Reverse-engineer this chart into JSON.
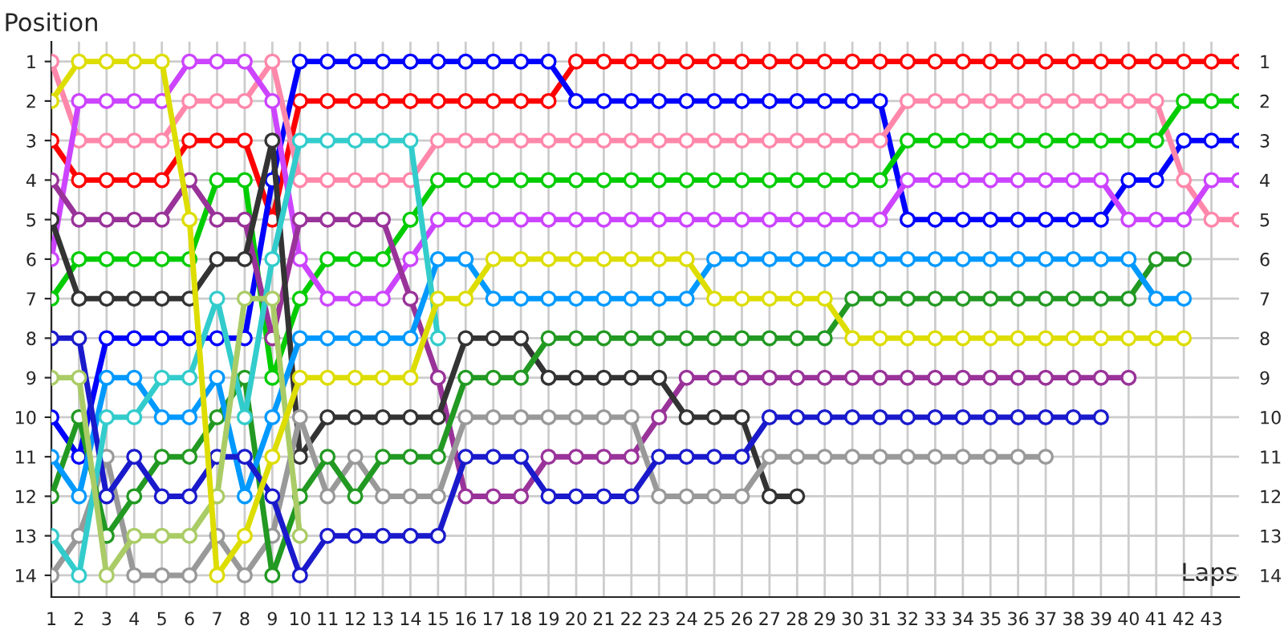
{
  "chart_data": {
    "type": "line",
    "xlabel": "Laps",
    "ylabel": "Position",
    "x": [
      1,
      2,
      3,
      4,
      5,
      6,
      7,
      8,
      9,
      10,
      11,
      12,
      13,
      14,
      15,
      16,
      17,
      18,
      19,
      20,
      21,
      22,
      23,
      24,
      25,
      26,
      27,
      28,
      29,
      30,
      31,
      32,
      33,
      34,
      35,
      36,
      37,
      38,
      39,
      40,
      41,
      42,
      43,
      44
    ],
    "xlim": [
      1,
      44
    ],
    "xticks": [
      1,
      2,
      3,
      4,
      5,
      6,
      7,
      8,
      9,
      10,
      11,
      12,
      13,
      14,
      15,
      16,
      17,
      18,
      19,
      20,
      21,
      22,
      23,
      24,
      25,
      26,
      27,
      28,
      29,
      30,
      31,
      32,
      33,
      34,
      35,
      36,
      37,
      38,
      39,
      40,
      41,
      42,
      43
    ],
    "ylim": [
      14.55,
      0.5
    ],
    "yticks": [
      1,
      2,
      3,
      4,
      5,
      6,
      7,
      8,
      9,
      10,
      11,
      12,
      13,
      14
    ],
    "y2lim": [
      14.55,
      0.5
    ],
    "y2ticks": [
      1,
      2,
      3,
      4,
      5,
      6,
      7,
      8,
      9,
      10,
      11,
      12,
      13,
      14
    ],
    "grid": true,
    "marker": "circle",
    "line_style": "solid",
    "series": [
      {
        "color": "#ff0000",
        "values": [
          3,
          4,
          4,
          4,
          4,
          3,
          3,
          3,
          5,
          2,
          2,
          2,
          2,
          2,
          2,
          2,
          2,
          2,
          2,
          1,
          1,
          1,
          1,
          1,
          1,
          1,
          1,
          1,
          1,
          1,
          1,
          1,
          1,
          1,
          1,
          1,
          1,
          1,
          1,
          1,
          1,
          1,
          1,
          1
        ]
      },
      {
        "color": "#0000ff",
        "values": [
          10,
          11,
          8,
          8,
          8,
          8,
          8,
          8,
          4,
          1,
          1,
          1,
          1,
          1,
          1,
          1,
          1,
          1,
          1,
          2,
          2,
          2,
          2,
          2,
          2,
          2,
          2,
          2,
          2,
          2,
          2,
          5,
          5,
          5,
          5,
          5,
          5,
          5,
          5,
          4,
          4,
          3,
          3,
          3
        ]
      },
      {
        "color": "#ff88aa",
        "values": [
          1,
          3,
          3,
          3,
          3,
          2,
          2,
          2,
          1,
          4,
          4,
          4,
          4,
          4,
          3,
          3,
          3,
          3,
          3,
          3,
          3,
          3,
          3,
          3,
          3,
          3,
          3,
          3,
          3,
          3,
          3,
          2,
          2,
          2,
          2,
          2,
          2,
          2,
          2,
          2,
          2,
          4,
          5,
          5
        ]
      },
      {
        "color": "#00cc00",
        "values": [
          7,
          6,
          6,
          6,
          6,
          6,
          4,
          4,
          9,
          7,
          6,
          6,
          6,
          5,
          4,
          4,
          4,
          4,
          4,
          4,
          4,
          4,
          4,
          4,
          4,
          4,
          4,
          4,
          4,
          4,
          4,
          3,
          3,
          3,
          3,
          3,
          3,
          3,
          3,
          3,
          3,
          2,
          2,
          2
        ]
      },
      {
        "color": "#cc44ff",
        "values": [
          6,
          2,
          2,
          2,
          2,
          1,
          1,
          1,
          2,
          6,
          7,
          7,
          7,
          6,
          5,
          5,
          5,
          5,
          5,
          5,
          5,
          5,
          5,
          5,
          5,
          5,
          5,
          5,
          5,
          5,
          5,
          4,
          4,
          4,
          4,
          4,
          4,
          4,
          4,
          5,
          5,
          5,
          4,
          4
        ]
      },
      {
        "color": "#993399",
        "values": [
          4,
          5,
          5,
          5,
          5,
          4,
          5,
          5,
          8,
          5,
          5,
          5,
          5,
          7,
          9,
          12,
          12,
          12,
          11,
          11,
          11,
          11,
          10,
          9,
          9,
          9,
          9,
          9,
          9,
          9,
          9,
          9,
          9,
          9,
          9,
          9,
          9,
          9,
          9,
          9,
          null,
          null,
          null,
          null
        ]
      },
      {
        "color": "#333333",
        "values": [
          5,
          7,
          7,
          7,
          7,
          7,
          6,
          6,
          3,
          11,
          10,
          10,
          10,
          10,
          10,
          8,
          8,
          8,
          9,
          9,
          9,
          9,
          9,
          10,
          10,
          10,
          12,
          12,
          null,
          null,
          null,
          null,
          null,
          null,
          null,
          null,
          null,
          null,
          null,
          null,
          null,
          null,
          null,
          null
        ]
      },
      {
        "color": "#999999",
        "values": [
          14,
          13,
          11,
          14,
          14,
          14,
          13,
          14,
          13,
          10,
          12,
          11,
          12,
          12,
          12,
          10,
          10,
          10,
          10,
          10,
          10,
          10,
          12,
          12,
          12,
          12,
          11,
          11,
          11,
          11,
          11,
          11,
          11,
          11,
          11,
          11,
          11,
          null,
          null,
          null,
          null,
          null,
          null,
          null
        ]
      },
      {
        "color": "#229922",
        "values": [
          12,
          10,
          13,
          12,
          11,
          11,
          10,
          9,
          14,
          12,
          11,
          12,
          11,
          11,
          11,
          9,
          9,
          9,
          8,
          8,
          8,
          8,
          8,
          8,
          8,
          8,
          8,
          8,
          8,
          7,
          7,
          7,
          7,
          7,
          7,
          7,
          7,
          7,
          7,
          7,
          6,
          6,
          null,
          null
        ]
      },
      {
        "color": "#0099ff",
        "values": [
          11,
          12,
          9,
          9,
          10,
          10,
          9,
          12,
          10,
          8,
          8,
          8,
          8,
          8,
          6,
          6,
          7,
          7,
          7,
          7,
          7,
          7,
          7,
          7,
          6,
          6,
          6,
          6,
          6,
          6,
          6,
          6,
          6,
          6,
          6,
          6,
          6,
          6,
          6,
          6,
          7,
          7,
          null,
          null
        ]
      },
      {
        "color": "#1a1acc",
        "values": [
          8,
          8,
          12,
          11,
          12,
          12,
          11,
          11,
          12,
          14,
          13,
          13,
          13,
          13,
          13,
          11,
          11,
          11,
          12,
          12,
          12,
          12,
          11,
          11,
          11,
          11,
          10,
          10,
          10,
          10,
          10,
          10,
          10,
          10,
          10,
          10,
          10,
          10,
          10,
          null,
          null,
          null,
          null,
          null
        ]
      },
      {
        "color": "#33cccc",
        "values": [
          13,
          14,
          10,
          10,
          9,
          9,
          7,
          10,
          6,
          3,
          3,
          3,
          3,
          3,
          8,
          null,
          null,
          null,
          null,
          null,
          null,
          null,
          null,
          null,
          null,
          null,
          null,
          null,
          null,
          null,
          null,
          null,
          null,
          null,
          null,
          null,
          null,
          null,
          null,
          null,
          null,
          null,
          null,
          null
        ]
      },
      {
        "color": "#aacc66",
        "values": [
          9,
          9,
          14,
          13,
          13,
          13,
          12,
          7,
          7,
          13,
          null,
          null,
          null,
          null,
          null,
          null,
          null,
          null,
          null,
          null,
          null,
          null,
          null,
          null,
          null,
          null,
          null,
          null,
          null,
          null,
          null,
          null,
          null,
          null,
          null,
          null,
          null,
          null,
          null,
          null,
          null,
          null,
          null,
          null
        ]
      },
      {
        "color": "#dddd00",
        "values": [
          2,
          1,
          1,
          1,
          1,
          5,
          14,
          13,
          11,
          9,
          9,
          9,
          9,
          9,
          7,
          7,
          6,
          6,
          6,
          6,
          6,
          6,
          6,
          6,
          7,
          7,
          7,
          7,
          7,
          8,
          8,
          8,
          8,
          8,
          8,
          8,
          8,
          8,
          8,
          8,
          8,
          8,
          null,
          null
        ]
      }
    ]
  }
}
